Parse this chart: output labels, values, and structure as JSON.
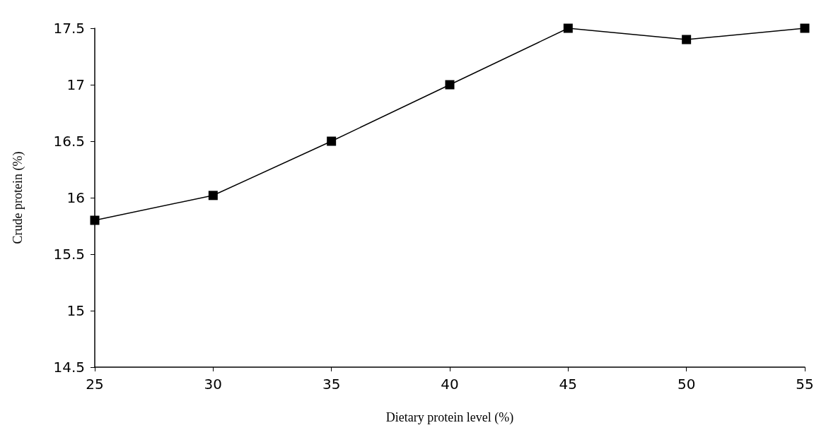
{
  "chart_data": {
    "type": "line",
    "xlabel": "Dietary protein level (%)",
    "ylabel": "Crude protein (%)",
    "x": [
      25,
      30,
      35,
      40,
      45,
      50,
      55
    ],
    "series": [
      {
        "color": "#000000",
        "values": [
          15.8,
          16.02,
          16.5,
          17.0,
          17.5,
          17.4,
          17.5
        ]
      }
    ],
    "xlim": [
      25,
      55
    ],
    "xticks": [
      25,
      30,
      35,
      40,
      45,
      50,
      55
    ],
    "ylim": [
      14.5,
      17.5
    ],
    "yticks": [
      14.5,
      15,
      15.5,
      16,
      16.5,
      17,
      17.5
    ],
    "grid": false,
    "marker": "square",
    "line_style": "solid"
  }
}
